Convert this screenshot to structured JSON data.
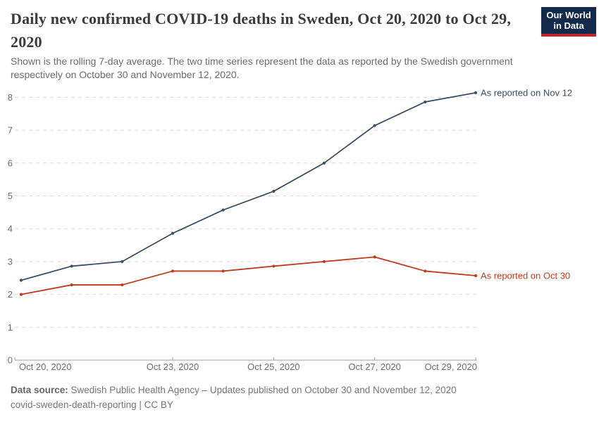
{
  "header": {
    "title": "Daily new confirmed COVID-19 deaths in Sweden, Oct 20, 2020 to Oct 29, 2020",
    "subtitle": "Shown is the rolling 7-day average. The two time series represent the data as reported by the Swedish government respectively on October 30 and November 12, 2020.",
    "logo": {
      "line1": "Our World",
      "line2": "in Data",
      "bg_color": "#12294B",
      "stripe_color": "#C0262D"
    }
  },
  "chart_data": {
    "type": "line",
    "title": "Daily new confirmed COVID-19 deaths in Sweden, Oct 20, 2020 to Oct 29, 2020",
    "x": [
      "Oct 20, 2020",
      "Oct 21, 2020",
      "Oct 22, 2020",
      "Oct 23, 2020",
      "Oct 24, 2020",
      "Oct 25, 2020",
      "Oct 26, 2020",
      "Oct 27, 2020",
      "Oct 28, 2020",
      "Oct 29, 2020"
    ],
    "series": [
      {
        "name": "As reported on Nov 12",
        "color": "#3C4E66",
        "values": [
          2.43,
          2.86,
          3.0,
          3.86,
          4.57,
          5.14,
          6.0,
          7.14,
          7.86,
          8.14
        ]
      },
      {
        "name": "As reported on Oct 30",
        "color": "#C13A1B",
        "values": [
          2.0,
          2.29,
          2.29,
          2.71,
          2.71,
          2.86,
          3.0,
          3.14,
          2.71,
          2.57
        ]
      }
    ],
    "ylim": [
      0,
      8
    ],
    "yticks": [
      0,
      1,
      2,
      3,
      4,
      5,
      6,
      7,
      8
    ],
    "xticks": [
      {
        "day_index": 0,
        "label": "Oct 20, 2020",
        "anchor": "start"
      },
      {
        "day_index": 3,
        "label": "Oct 23, 2020",
        "anchor": "middle"
      },
      {
        "day_index": 5,
        "label": "Oct 25, 2020",
        "anchor": "middle"
      },
      {
        "day_index": 7,
        "label": "Oct 27, 2020",
        "anchor": "middle"
      },
      {
        "day_index": 9,
        "label": "Oct 29, 2020",
        "anchor": "end"
      }
    ],
    "grid": "horizontal-dashed",
    "legend_position": "end-of-line-labels",
    "xlabel": "",
    "ylabel": ""
  },
  "colors": {
    "gridline": "#dcdcdc",
    "axis_line": "#9e9e9e",
    "tick_label": "#6e6e6e",
    "title_text": "#3b3b3b",
    "subtitle_text": "#6d6d6d",
    "footer_text": "#777777"
  },
  "footer": {
    "source_label": "Data source:",
    "source_text": " Swedish Public Health Agency – Updates published on October 30 and November 12, 2020",
    "license_line": "covid-sweden-death-reporting | CC BY"
  }
}
